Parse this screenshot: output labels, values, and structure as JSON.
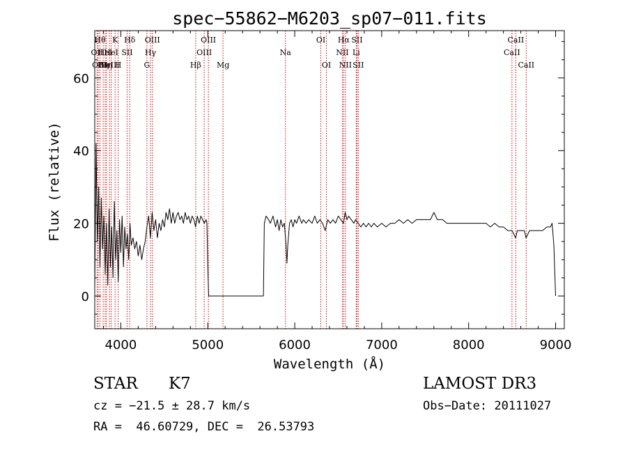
{
  "chart_data": {
    "type": "line",
    "title": "spec−55862−M6203_sp07−011.fits",
    "xlabel": "Wavelength (Å)",
    "ylabel": "Flux (relative)",
    "xlim": [
      3700,
      9100
    ],
    "ylim": [
      -9,
      73
    ],
    "xticks": [
      4000,
      5000,
      6000,
      7000,
      8000,
      9000
    ],
    "yticks": [
      0,
      20,
      40,
      60
    ],
    "line_color": "#000000",
    "marker_color": "#cc0000",
    "series": [
      {
        "name": "flux",
        "points": [
          [
            3700,
            2
          ],
          [
            3715,
            42
          ],
          [
            3730,
            15
          ],
          [
            3745,
            30
          ],
          [
            3760,
            8
          ],
          [
            3775,
            27
          ],
          [
            3790,
            13
          ],
          [
            3805,
            22
          ],
          [
            3820,
            6
          ],
          [
            3835,
            20
          ],
          [
            3850,
            3
          ],
          [
            3865,
            24
          ],
          [
            3880,
            8
          ],
          [
            3895,
            19
          ],
          [
            3910,
            5
          ],
          [
            3925,
            26
          ],
          [
            3940,
            10
          ],
          [
            3955,
            18
          ],
          [
            3970,
            4
          ],
          [
            3985,
            21
          ],
          [
            4000,
            12
          ],
          [
            4015,
            22
          ],
          [
            4030,
            8
          ],
          [
            4045,
            19
          ],
          [
            4060,
            13
          ],
          [
            4075,
            17
          ],
          [
            4090,
            10
          ],
          [
            4105,
            20
          ],
          [
            4120,
            14
          ],
          [
            4140,
            16
          ],
          [
            4160,
            13
          ],
          [
            4180,
            15
          ],
          [
            4200,
            11
          ],
          [
            4220,
            14
          ],
          [
            4240,
            10
          ],
          [
            4260,
            13
          ],
          [
            4280,
            15
          ],
          [
            4300,
            19
          ],
          [
            4320,
            22
          ],
          [
            4340,
            16
          ],
          [
            4360,
            23
          ],
          [
            4380,
            18
          ],
          [
            4400,
            21
          ],
          [
            4420,
            16
          ],
          [
            4440,
            20
          ],
          [
            4460,
            18
          ],
          [
            4480,
            21
          ],
          [
            4500,
            19
          ],
          [
            4520,
            23
          ],
          [
            4540,
            21
          ],
          [
            4560,
            24
          ],
          [
            4580,
            20
          ],
          [
            4600,
            23
          ],
          [
            4620,
            20
          ],
          [
            4640,
            22
          ],
          [
            4660,
            23
          ],
          [
            4680,
            21
          ],
          [
            4700,
            22
          ],
          [
            4720,
            20
          ],
          [
            4740,
            23
          ],
          [
            4760,
            21
          ],
          [
            4780,
            22
          ],
          [
            4800,
            20
          ],
          [
            4820,
            22
          ],
          [
            4840,
            21
          ],
          [
            4860,
            19
          ],
          [
            4880,
            22
          ],
          [
            4900,
            20
          ],
          [
            4920,
            22
          ],
          [
            4940,
            21
          ],
          [
            4960,
            20
          ],
          [
            4980,
            21
          ],
          [
            4990,
            20
          ],
          [
            5000,
            8
          ],
          [
            5010,
            0
          ],
          [
            5300,
            0
          ],
          [
            5640,
            0
          ],
          [
            5650,
            20
          ],
          [
            5670,
            22
          ],
          [
            5700,
            21
          ],
          [
            5720,
            20
          ],
          [
            5750,
            22
          ],
          [
            5780,
            19
          ],
          [
            5800,
            21
          ],
          [
            5820,
            18
          ],
          [
            5840,
            21
          ],
          [
            5860,
            19
          ],
          [
            5880,
            20
          ],
          [
            5900,
            14
          ],
          [
            5910,
            9
          ],
          [
            5920,
            14
          ],
          [
            5940,
            20
          ],
          [
            5960,
            21
          ],
          [
            5980,
            19
          ],
          [
            6000,
            21
          ],
          [
            6020,
            20
          ],
          [
            6050,
            22
          ],
          [
            6080,
            20
          ],
          [
            6100,
            21
          ],
          [
            6130,
            20
          ],
          [
            6160,
            21
          ],
          [
            6200,
            20
          ],
          [
            6230,
            22
          ],
          [
            6260,
            20
          ],
          [
            6290,
            21
          ],
          [
            6320,
            20
          ],
          [
            6350,
            18
          ],
          [
            6380,
            21
          ],
          [
            6410,
            20
          ],
          [
            6440,
            21
          ],
          [
            6470,
            20
          ],
          [
            6500,
            22
          ],
          [
            6530,
            21
          ],
          [
            6560,
            20
          ],
          [
            6580,
            23
          ],
          [
            6600,
            21
          ],
          [
            6620,
            22
          ],
          [
            6650,
            21
          ],
          [
            6680,
            20
          ],
          [
            6700,
            21
          ],
          [
            6730,
            20
          ],
          [
            6760,
            19
          ],
          [
            6790,
            20
          ],
          [
            6820,
            19
          ],
          [
            6850,
            20
          ],
          [
            6880,
            19
          ],
          [
            6910,
            20
          ],
          [
            6950,
            19
          ],
          [
            7000,
            20
          ],
          [
            7050,
            19
          ],
          [
            7100,
            20
          ],
          [
            7150,
            20
          ],
          [
            7200,
            21
          ],
          [
            7250,
            20
          ],
          [
            7300,
            21
          ],
          [
            7350,
            20
          ],
          [
            7400,
            21
          ],
          [
            7450,
            21
          ],
          [
            7500,
            21
          ],
          [
            7560,
            21
          ],
          [
            7600,
            23
          ],
          [
            7640,
            21
          ],
          [
            7700,
            21
          ],
          [
            7750,
            20
          ],
          [
            7800,
            20
          ],
          [
            7850,
            20
          ],
          [
            7900,
            20
          ],
          [
            7950,
            20
          ],
          [
            8000,
            20
          ],
          [
            8050,
            20
          ],
          [
            8100,
            20
          ],
          [
            8150,
            20
          ],
          [
            8200,
            20
          ],
          [
            8250,
            19
          ],
          [
            8300,
            20
          ],
          [
            8350,
            19
          ],
          [
            8400,
            19
          ],
          [
            8450,
            18
          ],
          [
            8500,
            18
          ],
          [
            8540,
            16
          ],
          [
            8560,
            18
          ],
          [
            8600,
            18
          ],
          [
            8640,
            18
          ],
          [
            8660,
            16
          ],
          [
            8700,
            18
          ],
          [
            8750,
            18
          ],
          [
            8800,
            18
          ],
          [
            8850,
            18
          ],
          [
            8900,
            19
          ],
          [
            8940,
            19
          ],
          [
            8960,
            20
          ],
          [
            8980,
            14
          ],
          [
            9000,
            0
          ]
        ]
      }
    ],
    "line_markers": [
      {
        "wl": 3727,
        "label": "OII",
        "row": 2
      },
      {
        "wl": 3740,
        "label": "OII",
        "row": 3
      },
      {
        "wl": 3760,
        "label": "Hθ",
        "row": 1
      },
      {
        "wl": 3797,
        "label": "Hη",
        "row": 3
      },
      {
        "wl": 3820,
        "label": "HeI",
        "row": 2
      },
      {
        "wl": 3835,
        "label": "Hη",
        "row": 3
      },
      {
        "wl": 3869,
        "label": "NeIII",
        "row": 3
      },
      {
        "wl": 3889,
        "label": "HeI",
        "row": 2
      },
      {
        "wl": 3934,
        "label": "K",
        "row": 1
      },
      {
        "wl": 3969,
        "label": "H",
        "row": 3
      },
      {
        "wl": 4072,
        "label": "SII",
        "row": 2
      },
      {
        "wl": 4102,
        "label": "Hδ",
        "row": 1
      },
      {
        "wl": 4300,
        "label": "G",
        "row": 3
      },
      {
        "wl": 4341,
        "label": "Hγ",
        "row": 2
      },
      {
        "wl": 4363,
        "label": "OIII",
        "row": 1
      },
      {
        "wl": 4861,
        "label": "Hβ",
        "row": 3
      },
      {
        "wl": 4959,
        "label": "OIII",
        "row": 2
      },
      {
        "wl": 5007,
        "label": "OIII",
        "row": 1
      },
      {
        "wl": 5175,
        "label": "Mg",
        "row": 3
      },
      {
        "wl": 5893,
        "label": "Na",
        "row": 2
      },
      {
        "wl": 6300,
        "label": "OI",
        "row": 1
      },
      {
        "wl": 6364,
        "label": "OI",
        "row": 3
      },
      {
        "wl": 6548,
        "label": "NII",
        "row": 2
      },
      {
        "wl": 6563,
        "label": "Hα",
        "row": 1
      },
      {
        "wl": 6583,
        "label": "NII",
        "row": 3
      },
      {
        "wl": 6707,
        "label": "Li",
        "row": 2
      },
      {
        "wl": 6716,
        "label": "SII",
        "row": 1
      },
      {
        "wl": 6731,
        "label": "SII",
        "row": 3
      },
      {
        "wl": 8498,
        "label": "CaII",
        "row": 2
      },
      {
        "wl": 8542,
        "label": "CaII",
        "row": 1
      },
      {
        "wl": 8662,
        "label": "CaII",
        "row": 3
      }
    ]
  },
  "info": {
    "object_class": "STAR",
    "subclass": "K7",
    "redshift": "cz = −21.5 ± 28.7 km/s",
    "coords": "RA =  46.60729, DEC =  26.53793",
    "survey": "LAMOST DR3",
    "obs_date": "Obs−Date: 20111027"
  }
}
